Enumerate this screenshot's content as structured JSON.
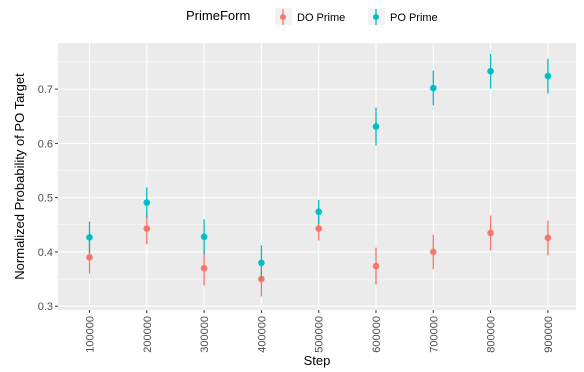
{
  "chart_data": {
    "type": "scatter",
    "title": "",
    "xlabel": "Step",
    "ylabel": "Normalized Probability of PO Target",
    "x": [
      "100000",
      "200000",
      "300000",
      "400000",
      "500000",
      "600000",
      "700000",
      "800000",
      "900000"
    ],
    "yticks": [
      "0.3",
      "0.4",
      "0.5",
      "0.6",
      "0.7"
    ],
    "ylim": [
      0.293,
      0.785
    ],
    "grid": true,
    "legend": {
      "title": "PrimeForm",
      "position": "top"
    },
    "series": [
      {
        "name": "DO Prime",
        "color": "#F8766D",
        "values": [
          0.39,
          0.443,
          0.37,
          0.35,
          0.443,
          0.374,
          0.4,
          0.435,
          0.426
        ],
        "lower": [
          0.36,
          0.414,
          0.338,
          0.318,
          0.421,
          0.34,
          0.368,
          0.403,
          0.394
        ],
        "upper": [
          0.42,
          0.472,
          0.402,
          0.382,
          0.465,
          0.408,
          0.432,
          0.467,
          0.458
        ]
      },
      {
        "name": "PO Prime",
        "color": "#00BFC4",
        "values": [
          0.427,
          0.491,
          0.428,
          0.38,
          0.474,
          0.631,
          0.702,
          0.733,
          0.724
        ],
        "lower": [
          0.398,
          0.463,
          0.396,
          0.348,
          0.452,
          0.596,
          0.67,
          0.701,
          0.692
        ],
        "upper": [
          0.456,
          0.519,
          0.46,
          0.412,
          0.496,
          0.666,
          0.734,
          0.765,
          0.756
        ]
      }
    ]
  }
}
